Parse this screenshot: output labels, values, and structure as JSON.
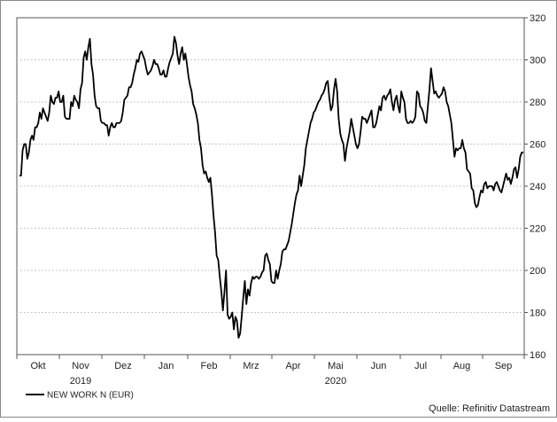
{
  "chart_data": {
    "type": "line",
    "title": "",
    "xlabel": "",
    "ylabel": "",
    "y_axis_side": "right",
    "ylim": [
      160,
      320
    ],
    "yticks": [
      160,
      180,
      200,
      220,
      240,
      260,
      280,
      300,
      320
    ],
    "grid": true,
    "legend_position": "bottom-left",
    "month_labels": [
      "Okt",
      "Nov",
      "Dez",
      "Jan",
      "Feb",
      "Mrz",
      "Apr",
      "Mai",
      "Jun",
      "Jul",
      "Aug",
      "Sep"
    ],
    "year_labels": [
      {
        "text": "2019",
        "month": "Nov"
      },
      {
        "text": "2020",
        "month": "Mai"
      }
    ],
    "x_unit": "trading days, Sep 2019 – Sep 2020",
    "series": [
      {
        "name": "NEW WORK N (EUR)",
        "color": "#000000",
        "values": [
          245,
          245,
          257,
          260,
          260,
          253,
          256,
          262,
          264,
          262,
          268,
          268,
          270,
          275,
          272,
          277,
          275,
          273,
          271,
          275,
          283,
          280,
          279,
          282,
          282,
          285,
          280,
          280,
          283,
          273,
          272,
          272,
          272,
          280,
          278,
          283,
          281,
          280,
          277,
          286,
          289,
          301,
          304,
          300,
          306,
          310,
          298,
          293,
          283,
          278,
          277,
          277,
          271,
          270,
          270,
          269,
          269,
          264,
          268,
          270,
          268,
          268,
          270,
          270,
          270,
          271,
          275,
          281,
          282,
          283,
          287,
          287,
          289,
          293,
          296,
          300,
          299,
          303,
          304,
          302,
          300,
          296,
          293,
          294,
          295,
          297,
          300,
          298,
          298,
          296,
          293,
          293,
          295,
          292,
          292,
          296,
          299,
          301,
          303,
          311,
          308,
          302,
          298,
          303,
          306,
          300,
          303,
          298,
          292,
          288,
          285,
          279,
          277,
          274,
          270,
          262,
          258,
          250,
          246,
          247,
          244,
          242,
          244,
          236,
          226,
          218,
          207,
          205,
          197,
          190,
          181,
          190,
          200,
          179,
          177,
          178,
          180,
          172,
          178,
          176,
          168,
          170,
          178,
          187,
          195,
          184,
          191,
          188,
          194,
          197,
          196,
          197,
          197,
          196,
          197,
          199,
          200,
          207,
          208,
          205,
          203,
          195,
          194,
          194,
          200,
          196,
          200,
          203,
          209,
          210,
          210,
          212,
          214,
          218,
          222,
          227,
          232,
          236,
          238,
          245,
          240,
          245,
          250,
          258,
          262,
          266,
          270,
          272,
          275,
          276,
          278,
          280,
          281,
          283,
          284,
          286,
          289,
          290,
          282,
          276,
          278,
          286,
          291,
          285,
          272,
          265,
          262,
          260,
          252,
          258,
          262,
          266,
          272,
          268,
          264,
          260,
          258,
          260,
          266,
          273,
          272,
          272,
          270,
          272,
          274,
          276,
          268,
          268,
          270,
          274,
          278,
          276,
          282,
          283,
          281,
          283,
          284,
          286,
          280,
          276,
          281,
          283,
          278,
          275,
          285,
          282,
          280,
          272,
          270,
          270,
          271,
          270,
          271,
          273,
          285,
          284,
          278,
          277,
          275,
          271,
          270,
          278,
          286,
          296,
          290,
          284,
          285,
          283,
          282,
          283,
          284,
          287,
          285,
          280,
          278,
          274,
          270,
          262,
          254,
          258,
          257,
          258,
          258,
          262,
          258,
          256,
          248,
          247,
          246,
          239,
          238,
          232,
          230,
          231,
          235,
          238,
          237,
          241,
          242,
          239,
          240,
          240,
          240,
          238,
          241,
          242,
          240,
          238,
          237,
          240,
          243,
          246,
          243,
          244,
          241,
          244,
          248,
          249,
          244,
          248,
          254,
          256,
          256
        ]
      }
    ]
  },
  "legend": {
    "label": "NEW WORK N (EUR)"
  },
  "source": "Quelle: Refinitiv Datastream"
}
